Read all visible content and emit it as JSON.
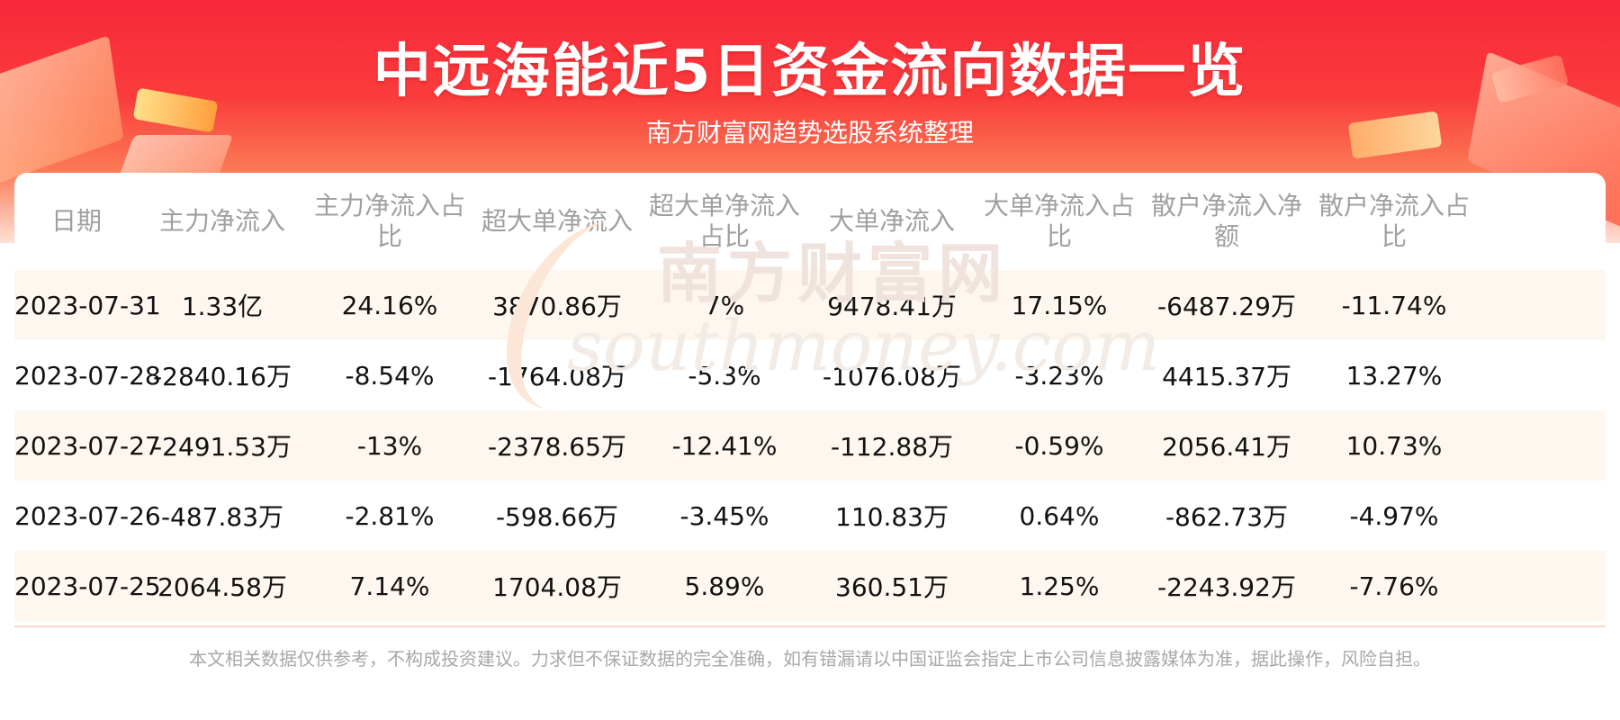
{
  "header": {
    "title": "中远海能近5日资金流向数据一览",
    "subtitle": "南方财富网趋势选股系统整理"
  },
  "watermark": {
    "cn": "南方财富网",
    "en": "southmoney.com"
  },
  "table": {
    "columns": [
      "日期",
      "主力净流入",
      "主力净流入占比",
      "超大单净流入",
      "超大单净流入占比",
      "大单净流入",
      "大单净流入占比",
      "散户净流入净额",
      "散户净流入占比"
    ],
    "rows": [
      [
        "2023-07-31",
        "1.33亿",
        "24.16%",
        "3870.86万",
        "7%",
        "9478.41万",
        "17.15%",
        "-6487.29万",
        "-11.74%"
      ],
      [
        "2023-07-28",
        "-2840.16万",
        "-8.54%",
        "-1764.08万",
        "-5.3%",
        "-1076.08万",
        "-3.23%",
        "4415.37万",
        "13.27%"
      ],
      [
        "2023-07-27",
        "-2491.53万",
        "-13%",
        "-2378.65万",
        "-12.41%",
        "-112.88万",
        "-0.59%",
        "2056.41万",
        "10.73%"
      ],
      [
        "2023-07-26",
        "-487.83万",
        "-2.81%",
        "-598.66万",
        "-3.45%",
        "110.83万",
        "0.64%",
        "-862.73万",
        "-4.97%"
      ],
      [
        "2023-07-25",
        "2064.58万",
        "7.14%",
        "1704.08万",
        "5.89%",
        "360.51万",
        "1.25%",
        "-2243.92万",
        "-7.76%"
      ]
    ]
  },
  "footer": {
    "disclaimer": "本文相关数据仅供参考，不构成投资建议。力求但不保证数据的完全准确，如有错漏请以中国证监会指定上市公司信息披露媒体为准，据此操作，风险自担。"
  },
  "colors": {
    "banner_red": "#f8283a",
    "header_text_gray": "#a0a0a0",
    "row_alt_bg": "#fef6ef",
    "footer_text": "#a8a8a8"
  }
}
